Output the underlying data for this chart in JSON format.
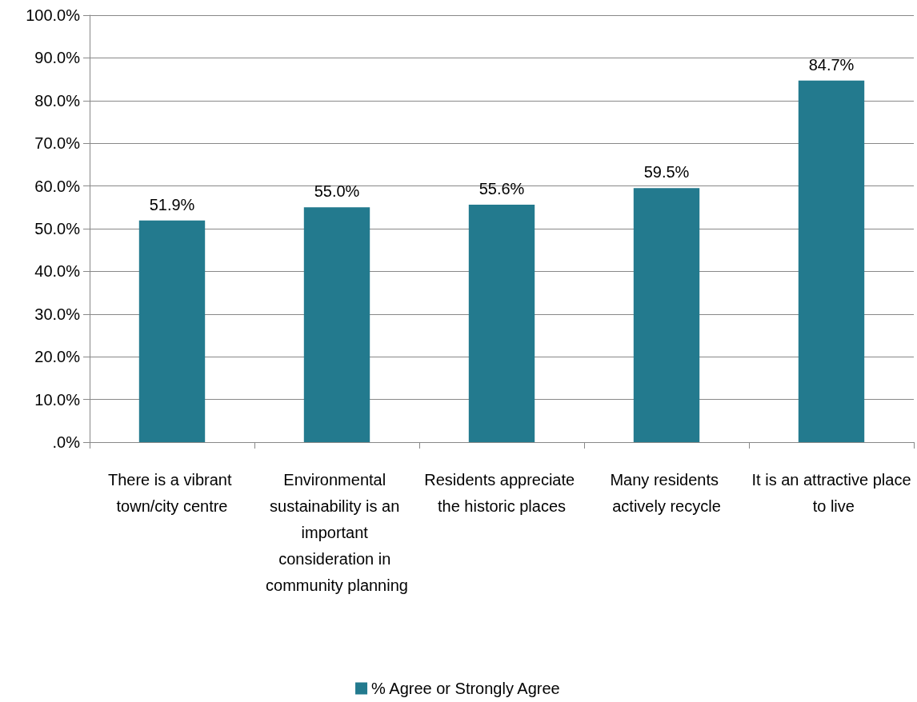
{
  "chart_data": {
    "type": "bar",
    "categories": [
      "There is a vibrant town/city centre",
      "Environmental sustainability is an important consideration in community planning",
      "Residents appreciate the historic places",
      "Many residents actively recycle",
      "It is an attractive place to live"
    ],
    "series": [
      {
        "name": "% Agree or Strongly Agree",
        "color": "#237a8e",
        "values": [
          51.9,
          55.0,
          55.6,
          59.5,
          84.7
        ],
        "value_labels": [
          "51.9%",
          "55.0%",
          "55.6%",
          "59.5%",
          "84.7%"
        ]
      }
    ],
    "ylim": [
      0,
      100
    ],
    "yticks": [
      {
        "value": 0,
        "label": ".0%"
      },
      {
        "value": 10,
        "label": "10.0%"
      },
      {
        "value": 20,
        "label": "20.0%"
      },
      {
        "value": 30,
        "label": "30.0%"
      },
      {
        "value": 40,
        "label": "40.0%"
      },
      {
        "value": 50,
        "label": "50.0%"
      },
      {
        "value": 60,
        "label": "60.0%"
      },
      {
        "value": 70,
        "label": "70.0%"
      },
      {
        "value": 80,
        "label": "80.0%"
      },
      {
        "value": 90,
        "label": "90.0%"
      },
      {
        "value": 100,
        "label": "100.0%"
      }
    ],
    "grid": "y",
    "legend": "bottom"
  }
}
